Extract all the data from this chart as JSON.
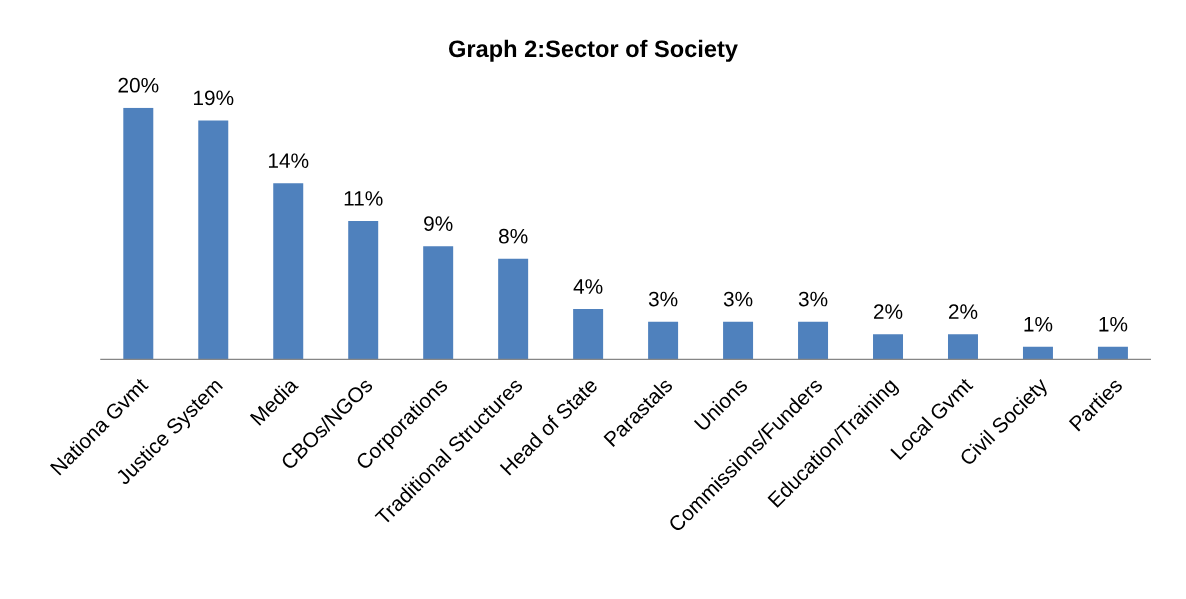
{
  "chart_data": {
    "type": "bar",
    "title": "Graph 2:Sector of Society",
    "categories": [
      "Nationa Gvmt",
      "Justice System",
      "Media",
      "CBOs/NGOs",
      "Corporations",
      "Traditional Structures",
      "Head of State",
      "Parastals",
      "Unions",
      "Commissions/Funders",
      "Education/Training",
      "Local Gvmt",
      "Civil Society",
      "Parties"
    ],
    "values": [
      20,
      19,
      14,
      11,
      9,
      8,
      4,
      3,
      3,
      3,
      2,
      2,
      1,
      1
    ],
    "value_labels": [
      "20%",
      "19%",
      "14%",
      "11%",
      "9%",
      "8%",
      "4%",
      "3%",
      "3%",
      "3%",
      "2%",
      "2%",
      "1%",
      "1%"
    ],
    "color": "#4f81bd",
    "grid": false,
    "legend": false
  }
}
